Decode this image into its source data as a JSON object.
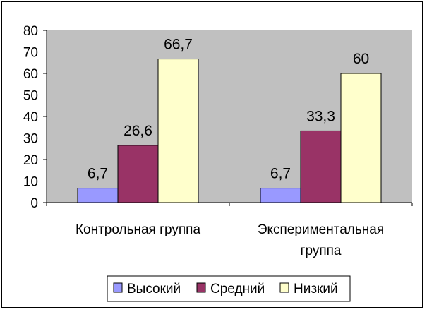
{
  "chart_data": {
    "type": "bar",
    "categories": [
      [
        "Контрольная группа"
      ],
      [
        "Экспериментальная",
        "группа"
      ]
    ],
    "series": [
      {
        "name": "Высокий",
        "values": [
          6.7,
          6.7
        ],
        "labels": [
          "6,7",
          "6,7"
        ],
        "color": "#9999ff"
      },
      {
        "name": "Средний",
        "values": [
          26.6,
          33.3
        ],
        "labels": [
          "26,6",
          "33,3"
        ],
        "color": "#993366"
      },
      {
        "name": "Низкий",
        "values": [
          66.7,
          60
        ],
        "labels": [
          "66,7",
          "60"
        ],
        "color": "#ffffcc"
      }
    ],
    "ylim": [
      0,
      80
    ],
    "yticks": [
      0,
      10,
      20,
      30,
      40,
      50,
      60,
      70,
      80
    ],
    "plot_background": "#c0c0c0",
    "grid": false,
    "legend_position": "bottom",
    "title": "",
    "xlabel": "",
    "ylabel": ""
  }
}
